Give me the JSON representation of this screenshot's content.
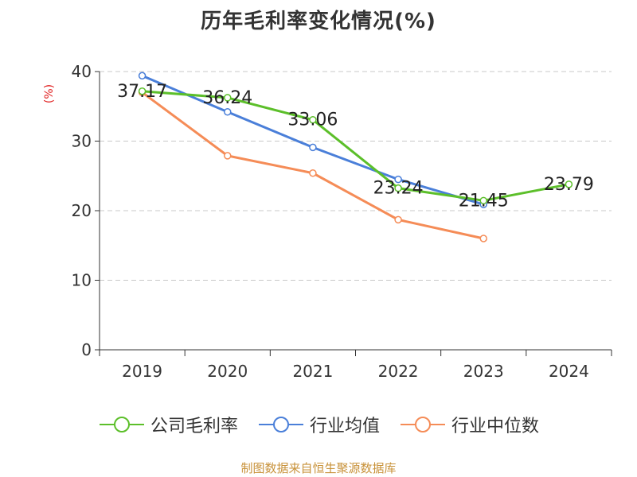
{
  "chart_data": {
    "type": "line",
    "title": "历年毛利率变化情况(%)",
    "ylabel": "(%)",
    "xlabel": "",
    "categories": [
      "2019",
      "2020",
      "2021",
      "2022",
      "2023",
      "2024"
    ],
    "ylim": [
      0,
      40
    ],
    "yticks": [
      0,
      10,
      20,
      30,
      40
    ],
    "grid": true,
    "legend_position": "bottom",
    "series": [
      {
        "name": "公司毛利率",
        "color": "#5cbf2a",
        "values": [
          37.17,
          36.24,
          33.06,
          23.24,
          21.45,
          23.79
        ],
        "labels": [
          "37.17",
          "36.24",
          "33.06",
          "23.24",
          "21.45",
          "23.79"
        ]
      },
      {
        "name": "行业均值",
        "color": "#4a7fd9",
        "values": [
          39.4,
          34.2,
          29.1,
          24.5,
          20.9,
          null
        ]
      },
      {
        "name": "行业中位数",
        "color": "#f58c57",
        "values": [
          37.0,
          27.9,
          25.4,
          18.7,
          16.0,
          null
        ]
      }
    ]
  },
  "source": "制图数据来自恒生聚源数据库"
}
